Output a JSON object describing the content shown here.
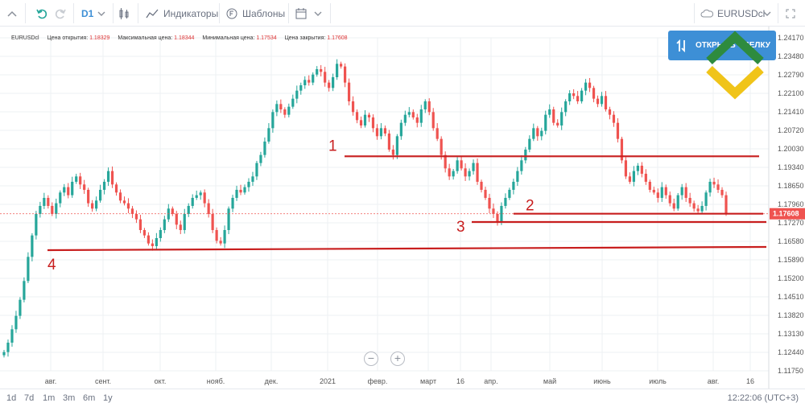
{
  "toolbar": {
    "timeframe": "D1",
    "indicators_label": "Индикаторы",
    "templates_label": "Шаблоны",
    "symbol": "EURUSDcl"
  },
  "legend": {
    "symbol": "EURUSDcl",
    "open_label": "Цена открытия:",
    "open_value": "1.18329",
    "high_label": "Максимальная цена:",
    "high_value": "1.18344",
    "low_label": "Минимальная цена:",
    "low_value": "1.17534",
    "close_label": "Цена закрытия:",
    "close_value": "1.17608"
  },
  "open_position_button": "ОТКРЫТЬ СДЕЛКУ",
  "bottom": {
    "ranges": [
      "1d",
      "7d",
      "1m",
      "3m",
      "6m",
      "1y"
    ],
    "clock": "12:22:06 (UTC+3)"
  },
  "colors": {
    "up": "#26a69a",
    "down": "#ef5350",
    "line": "#c81e1e",
    "accent": "#3d8fd6",
    "price_tag": "#ef5350"
  },
  "chart_data": {
    "type": "candlestick",
    "symbol": "EURUSDcl",
    "timeframe": "D1",
    "y_ticks": [
      "1.24170",
      "1.23480",
      "1.22790",
      "1.22100",
      "1.21410",
      "1.20720",
      "1.20030",
      "1.19340",
      "1.18650",
      "1.17960",
      "1.17270",
      "1.16580",
      "1.15890",
      "1.15200",
      "1.14510",
      "1.13820",
      "1.13130",
      "1.12440",
      "1.11750"
    ],
    "ylim": [
      1.1175,
      1.2417
    ],
    "x_labels": [
      "авг.",
      "сент.",
      "окт.",
      "нояб.",
      "дек.",
      "2021",
      "февр.",
      "март",
      "16",
      "апр.",
      "май",
      "июнь",
      "июль",
      "авг.",
      "16"
    ],
    "last_price": "1.17608",
    "close_series": [
      1.1245,
      1.128,
      1.133,
      1.138,
      1.144,
      1.151,
      1.16,
      1.168,
      1.176,
      1.179,
      1.182,
      1.179,
      1.176,
      1.18,
      1.184,
      1.186,
      1.183,
      1.188,
      1.19,
      1.187,
      1.185,
      1.18,
      1.178,
      1.181,
      1.185,
      1.188,
      1.192,
      1.187,
      1.184,
      1.181,
      1.18,
      1.178,
      1.176,
      1.174,
      1.17,
      1.168,
      1.165,
      1.164,
      1.167,
      1.17,
      1.174,
      1.178,
      1.176,
      1.172,
      1.17,
      1.176,
      1.179,
      1.182,
      1.183,
      1.184,
      1.18,
      1.176,
      1.17,
      1.166,
      1.165,
      1.17,
      1.178,
      1.182,
      1.185,
      1.184,
      1.186,
      1.188,
      1.19,
      1.195,
      1.198,
      1.203,
      1.208,
      1.214,
      1.217,
      1.215,
      1.213,
      1.216,
      1.219,
      1.222,
      1.224,
      1.226,
      1.225,
      1.228,
      1.23,
      1.229,
      1.225,
      1.223,
      1.227,
      1.232,
      1.231,
      1.225,
      1.218,
      1.214,
      1.211,
      1.209,
      1.213,
      1.212,
      1.208,
      1.205,
      1.208,
      1.206,
      1.2,
      1.198,
      1.205,
      1.21,
      1.213,
      1.214,
      1.212,
      1.21,
      1.215,
      1.218,
      1.214,
      1.208,
      1.204,
      1.198,
      1.193,
      1.19,
      1.192,
      1.196,
      1.193,
      1.19,
      1.192,
      1.195,
      1.188,
      1.185,
      1.182,
      1.178,
      1.176,
      1.173,
      1.179,
      1.182,
      1.185,
      1.188,
      1.192,
      1.196,
      1.2,
      1.204,
      1.208,
      1.205,
      1.207,
      1.213,
      1.215,
      1.21,
      1.209,
      1.214,
      1.218,
      1.221,
      1.22,
      1.218,
      1.222,
      1.225,
      1.223,
      1.219,
      1.217,
      1.22,
      1.215,
      1.213,
      1.21,
      1.204,
      1.196,
      1.19,
      1.188,
      1.192,
      1.194,
      1.191,
      1.188,
      1.185,
      1.184,
      1.182,
      1.186,
      1.183,
      1.18,
      1.178,
      1.183,
      1.186,
      1.182,
      1.18,
      1.178,
      1.177,
      1.179,
      1.184,
      1.188,
      1.187,
      1.185,
      1.183,
      1.1761
    ],
    "levels": [
      {
        "label": "1",
        "value": 1.1975
      },
      {
        "label": "2",
        "value": 1.1761
      },
      {
        "label": "3",
        "value": 1.173
      },
      {
        "label": "4",
        "value": 1.1625
      }
    ]
  }
}
